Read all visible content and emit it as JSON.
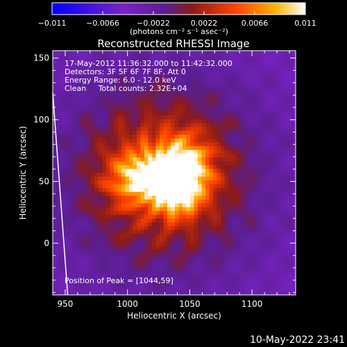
{
  "chart_data": {
    "type": "heatmap",
    "title": "Reconstructed RHESSI Image",
    "xlabel": "Heliocentric X (arcsec)",
    "ylabel": "Heliocentric Y (arcsec)",
    "xlim": [
      940,
      1135
    ],
    "ylim": [
      -42,
      156
    ],
    "xticks": [
      950,
      1000,
      1050,
      1100
    ],
    "yticks": [
      0,
      50,
      100,
      150
    ],
    "colorbar": {
      "min": -0.011,
      "max": 0.011,
      "ticks": [
        -0.011,
        -0.0066,
        -0.0022,
        0.0022,
        0.0066,
        0.011
      ],
      "tick_labels": [
        "−0.011",
        "−0.0066",
        "−0.0022",
        "0.0022",
        "0.0066",
        "0.011"
      ],
      "units_label": "(photons cm⁻² s⁻¹ asec⁻²)",
      "colormap": [
        "#0000ff",
        "#7a22c8",
        "#5a1e8e",
        "#8a1a1a",
        "#ff4000",
        "#ffb000",
        "#ffffff"
      ]
    },
    "annotations": [
      "17-May-2012 11:36:32.000 to 11:42:32.000",
      "Detectors: 3F 5F 6F 7F 8F, Att 0",
      "Energy Range: 6.0 - 12.0 keV",
      "Clean     Total counts: 2.32E+04"
    ],
    "peak_label": "Position of Peak = [1044,59]",
    "peak": [
      1044,
      59
    ],
    "sources": [
      {
        "x": 1044,
        "y": 59,
        "intensity": 0.011,
        "sigma_x": 15,
        "sigma_y": 17
      },
      {
        "x": 1010,
        "y": 53,
        "intensity": 0.0082,
        "sigma_x": 16,
        "sigma_y": 14
      },
      {
        "x": 1040,
        "y": 38,
        "intensity": 0.0058,
        "sigma_x": 12,
        "sigma_y": 12
      }
    ],
    "limb": [
      [
        940,
        122
      ],
      [
        952,
        -42
      ]
    ],
    "grid": false
  },
  "footer": {
    "timestamp": "10-May-2022 23:41"
  }
}
